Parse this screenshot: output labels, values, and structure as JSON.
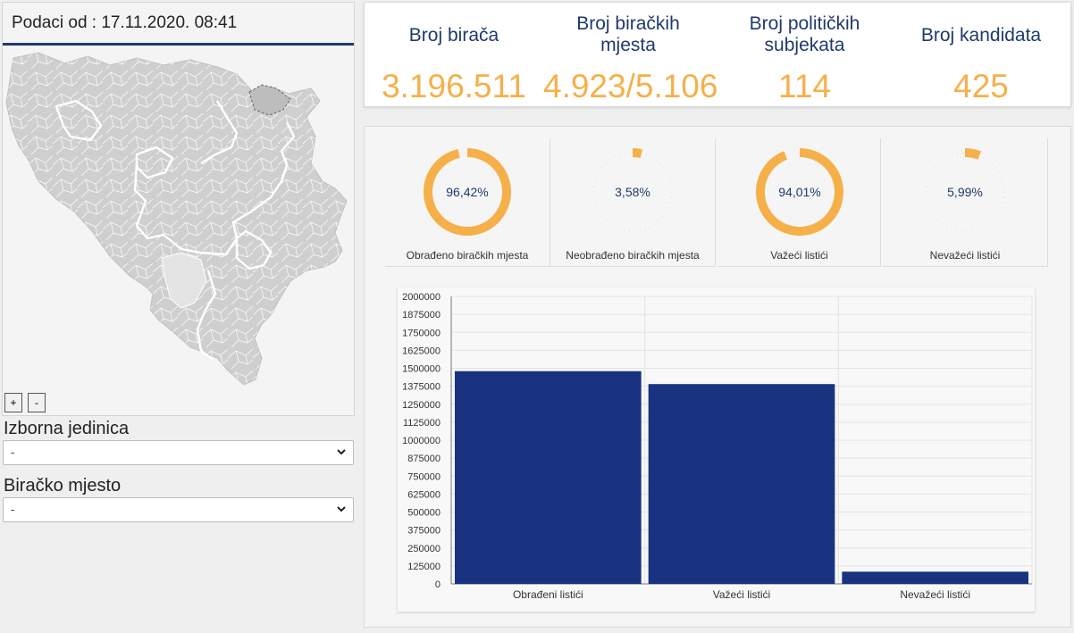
{
  "map": {
    "header": "Podaci od : 17.11.2020. 08:41",
    "zoom_in": "+",
    "zoom_out": "-"
  },
  "filters": {
    "constituency_label": "Izborna jedinica",
    "constituency_value": "-",
    "polling_station_label": "Biračko mjesto",
    "polling_station_value": "-"
  },
  "stats": [
    {
      "label_line1": "Broj birača",
      "label_line2": "",
      "value": "3.196.511"
    },
    {
      "label_line1": "Broj biračkih",
      "label_line2": "mjesta",
      "value": "4.923/5.106"
    },
    {
      "label_line1": "Broj političkih",
      "label_line2": "subjekata",
      "value": "114"
    },
    {
      "label_line1": "Broj kandidata",
      "label_line2": "",
      "value": "425"
    }
  ],
  "gauges": [
    {
      "label": "Obrađeno biračkih mjesta",
      "value_text": "96,42%",
      "percent": 96.42
    },
    {
      "label": "Neobrađeno biračkih mjesta",
      "value_text": "3,58%",
      "percent": 3.58
    },
    {
      "label": "Važeći listići",
      "value_text": "94,01%",
      "percent": 94.01
    },
    {
      "label": "Nevažeći listići",
      "value_text": "5,99%",
      "percent": 5.99
    }
  ],
  "colors": {
    "accent": "#f5b04a",
    "navy": "#1f3a6b",
    "bar": "#193381",
    "track": "#e8e8e8"
  },
  "chart_data": {
    "type": "bar",
    "categories": [
      "Obrađeni listići",
      "Važeći listići",
      "Nevažeći listići"
    ],
    "values": [
      1480000,
      1390000,
      85000
    ],
    "ylim": [
      0,
      2000000
    ],
    "yticks": [
      0,
      125000,
      250000,
      375000,
      500000,
      625000,
      750000,
      875000,
      1000000,
      1125000,
      1250000,
      1375000,
      1500000,
      1625000,
      1750000,
      1875000,
      2000000
    ],
    "grid": true,
    "color": "#193381"
  }
}
